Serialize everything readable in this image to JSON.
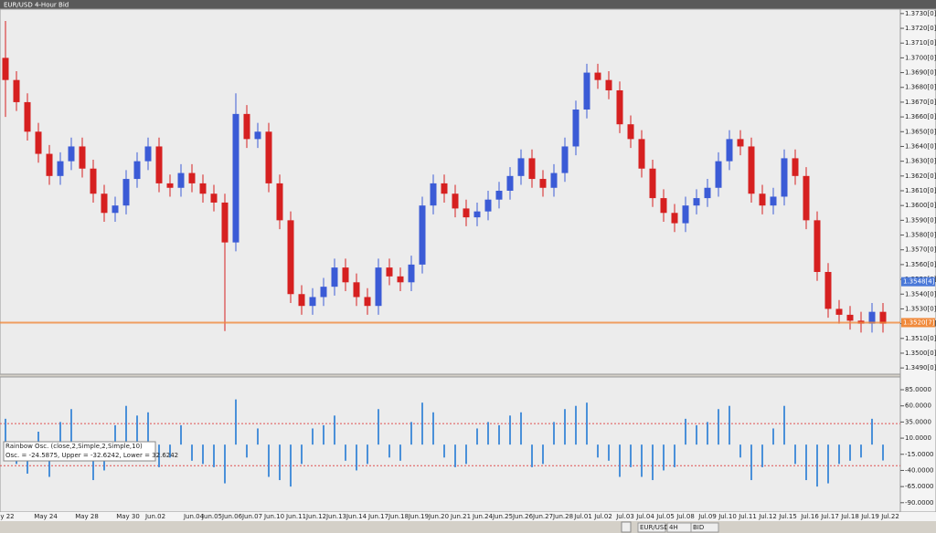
{
  "window": {
    "title": "EUR/USD 4-Hour Bid"
  },
  "toolbar": {
    "items": [
      "EUR/USD",
      "4H",
      "BID"
    ]
  },
  "chart_data": [
    {
      "type": "candlestick",
      "open": [
        1.37,
        1.3685,
        1.367,
        1.365,
        1.3635,
        1.362,
        1.363,
        1.364,
        1.3625,
        1.3608,
        1.3595,
        1.36,
        1.3618,
        1.363,
        1.364,
        1.3615,
        1.3612,
        1.3622,
        1.3615,
        1.3608,
        1.3602,
        1.3575,
        1.3662,
        1.3645,
        1.365,
        1.3615,
        1.359,
        1.354,
        1.3532,
        1.3538,
        1.3545,
        1.3558,
        1.3548,
        1.3538,
        1.3532,
        1.3558,
        1.3552,
        1.3548,
        1.356,
        1.36,
        1.3615,
        1.3608,
        1.3598,
        1.3592,
        1.3596,
        1.3604,
        1.361,
        1.362,
        1.3632,
        1.3618,
        1.3612,
        1.3622,
        1.364,
        1.3665,
        1.369,
        1.3685,
        1.3678,
        1.3655,
        1.3645,
        1.3625,
        1.3605,
        1.3595,
        1.3588,
        1.36,
        1.3605,
        1.3612,
        1.363,
        1.3645,
        1.364,
        1.3608,
        1.36,
        1.3606,
        1.3632,
        1.362,
        1.359,
        1.3555,
        1.353,
        1.3526,
        1.3522,
        1.352,
        1.3528
      ],
      "high": [
        1.3725,
        1.3691,
        1.3676,
        1.3656,
        1.3641,
        1.3636,
        1.3646,
        1.3646,
        1.3631,
        1.3614,
        1.3606,
        1.3624,
        1.3636,
        1.3646,
        1.3646,
        1.3621,
        1.3628,
        1.3628,
        1.3621,
        1.3614,
        1.3608,
        1.3676,
        1.3668,
        1.3656,
        1.3656,
        1.3621,
        1.3596,
        1.3546,
        1.3544,
        1.3551,
        1.3564,
        1.3564,
        1.3554,
        1.3544,
        1.3564,
        1.3564,
        1.3558,
        1.3566,
        1.3606,
        1.3621,
        1.3621,
        1.3614,
        1.3604,
        1.3602,
        1.361,
        1.3616,
        1.3626,
        1.3638,
        1.3638,
        1.3624,
        1.3628,
        1.3646,
        1.3671,
        1.3696,
        1.3696,
        1.3691,
        1.3684,
        1.3661,
        1.3651,
        1.3631,
        1.3611,
        1.3601,
        1.3606,
        1.3611,
        1.3618,
        1.3636,
        1.3651,
        1.3651,
        1.3646,
        1.3614,
        1.3612,
        1.3638,
        1.3638,
        1.3626,
        1.3596,
        1.3561,
        1.3536,
        1.3532,
        1.3528,
        1.3534,
        1.3534
      ],
      "low": [
        1.366,
        1.3664,
        1.3644,
        1.3629,
        1.3614,
        1.3614,
        1.3624,
        1.3619,
        1.3602,
        1.3589,
        1.3589,
        1.3594,
        1.3612,
        1.3624,
        1.3609,
        1.3606,
        1.3606,
        1.3609,
        1.3602,
        1.3596,
        1.3515,
        1.3569,
        1.3639,
        1.3639,
        1.3609,
        1.3584,
        1.3534,
        1.3526,
        1.3526,
        1.3532,
        1.3539,
        1.3542,
        1.3532,
        1.3526,
        1.3526,
        1.3546,
        1.3542,
        1.3542,
        1.3554,
        1.3594,
        1.3602,
        1.3592,
        1.3586,
        1.3586,
        1.359,
        1.3598,
        1.3604,
        1.3614,
        1.3612,
        1.3606,
        1.3606,
        1.3616,
        1.3634,
        1.3659,
        1.3679,
        1.3672,
        1.3649,
        1.3639,
        1.3619,
        1.3599,
        1.3589,
        1.3582,
        1.3582,
        1.3594,
        1.3599,
        1.3606,
        1.3624,
        1.3634,
        1.3602,
        1.3594,
        1.3594,
        1.36,
        1.3614,
        1.3584,
        1.3549,
        1.3524,
        1.352,
        1.3516,
        1.3514,
        1.3514,
        1.3514
      ],
      "close": [
        1.3685,
        1.367,
        1.365,
        1.3635,
        1.362,
        1.363,
        1.364,
        1.3625,
        1.3608,
        1.3595,
        1.36,
        1.3618,
        1.363,
        1.364,
        1.3615,
        1.3612,
        1.3622,
        1.3615,
        1.3608,
        1.3602,
        1.3575,
        1.3662,
        1.3645,
        1.365,
        1.3615,
        1.359,
        1.354,
        1.3532,
        1.3538,
        1.3545,
        1.3558,
        1.3548,
        1.3538,
        1.3532,
        1.3558,
        1.3552,
        1.3548,
        1.356,
        1.36,
        1.3615,
        1.3608,
        1.3598,
        1.3592,
        1.3596,
        1.3604,
        1.361,
        1.362,
        1.3632,
        1.3618,
        1.3612,
        1.3622,
        1.364,
        1.3665,
        1.369,
        1.3685,
        1.3678,
        1.3655,
        1.3645,
        1.3625,
        1.3605,
        1.3595,
        1.3588,
        1.36,
        1.3605,
        1.3612,
        1.363,
        1.3645,
        1.364,
        1.3608,
        1.36,
        1.3606,
        1.3632,
        1.362,
        1.359,
        1.3555,
        1.353,
        1.3526,
        1.3522,
        1.352,
        1.3528,
        1.352
      ],
      "up_color": "#3b5bd6",
      "down_color": "#d62020",
      "ylim": [
        1.3487,
        1.3733
      ],
      "yticks": [
        {
          "value": 1.349,
          "label": "1.3490[0]"
        },
        {
          "value": 1.35,
          "label": "1.3500[0]"
        },
        {
          "value": 1.351,
          "label": "1.3510[0]"
        },
        {
          "value": 1.352,
          "label": "1.3520[0]"
        },
        {
          "value": 1.353,
          "label": "1.3530[0]"
        },
        {
          "value": 1.354,
          "label": "1.3540[0]"
        },
        {
          "value": 1.355,
          "label": "1.3550[0]"
        },
        {
          "value": 1.356,
          "label": "1.3560[0]"
        },
        {
          "value": 1.357,
          "label": "1.3570[0]"
        },
        {
          "value": 1.358,
          "label": "1.3580[0]"
        },
        {
          "value": 1.359,
          "label": "1.3590[0]"
        },
        {
          "value": 1.36,
          "label": "1.3600[0]"
        },
        {
          "value": 1.361,
          "label": "1.3610[0]"
        },
        {
          "value": 1.362,
          "label": "1.3620[0]"
        },
        {
          "value": 1.363,
          "label": "1.3630[0]"
        },
        {
          "value": 1.364,
          "label": "1.3640[0]"
        },
        {
          "value": 1.365,
          "label": "1.3650[0]"
        },
        {
          "value": 1.366,
          "label": "1.3660[0]"
        },
        {
          "value": 1.367,
          "label": "1.3670[0]"
        },
        {
          "value": 1.368,
          "label": "1.3680[0]"
        },
        {
          "value": 1.369,
          "label": "1.3690[0]"
        },
        {
          "value": 1.37,
          "label": "1.3700[0]"
        },
        {
          "value": 1.371,
          "label": "1.3710[0]"
        },
        {
          "value": 1.372,
          "label": "1.3720[0]"
        },
        {
          "value": 1.373,
          "label": "1.3730[0]"
        }
      ],
      "price_tags": [
        {
          "value": 1.35484,
          "label": "1.3548[4]",
          "color": "#4a78d8"
        },
        {
          "value": 1.35207,
          "label": "1.3520[7]",
          "color": "#f08a3c"
        }
      ],
      "x_labels": [
        "y 22",
        "May 24",
        "May 28",
        "May 30",
        "Jun.02",
        "Jun.04",
        "Jun.05",
        "Jun.06",
        "Jun.07",
        "Jun.10",
        "Jun.11",
        "Jun.12",
        "Jun.13",
        "Jun.14",
        "Jun.17",
        "Jun.18",
        "Jun.19",
        "Jun.20",
        "Jun.21",
        "Jun.24",
        "Jun.25",
        "Jun.26",
        "Jun.27",
        "Jun.28",
        "Jul.01",
        "Jul.02",
        "Jul.03",
        "Jul.04",
        "Jul.05",
        "Jul.08",
        "Jul.09",
        "Jul.10",
        "Jul.11",
        "Jul.12",
        "Jul.15",
        "Jul.16",
        "Jul.17",
        "Jul.18",
        "Jul.19",
        "Jul.22"
      ]
    },
    {
      "type": "bar",
      "title": "Rainbow Osc. (close,2,Simple,2,Simple,10)",
      "status": "Osc. = -24.5875, Upper = -32.6242, Lower = 32.6242",
      "values": [
        40,
        -30,
        -45,
        20,
        -50,
        35,
        55,
        -25,
        -55,
        -40,
        30,
        60,
        45,
        50,
        -35,
        -20,
        30,
        -25,
        -30,
        -35,
        -60,
        70,
        -20,
        25,
        -50,
        -55,
        -65,
        -30,
        25,
        30,
        45,
        -25,
        -40,
        -30,
        55,
        -20,
        -25,
        35,
        65,
        50,
        -20,
        -35,
        -30,
        25,
        35,
        30,
        45,
        50,
        -35,
        -30,
        35,
        55,
        60,
        65,
        -20,
        -25,
        -50,
        -35,
        -50,
        -55,
        -40,
        -35,
        40,
        30,
        35,
        55,
        60,
        -20,
        -55,
        -35,
        25,
        60,
        -30,
        -55,
        -65,
        -60,
        -30,
        -25,
        -20,
        40,
        -24.5875
      ],
      "color": "#4a90d9",
      "levels": [
        -32.6242,
        32.6242
      ],
      "ylim": [
        -103,
        102
      ],
      "yticks": [
        {
          "value": 85,
          "label": "85.0000"
        },
        {
          "value": 60,
          "label": "60.0000"
        },
        {
          "value": 35,
          "label": "35.0000"
        },
        {
          "value": 10,
          "label": "10.0000"
        },
        {
          "value": -15,
          "label": "-15.0000"
        },
        {
          "value": -40,
          "label": "-40.0000"
        },
        {
          "value": -65,
          "label": "-65.0000"
        },
        {
          "value": -90,
          "label": "-90.0000"
        }
      ]
    }
  ]
}
